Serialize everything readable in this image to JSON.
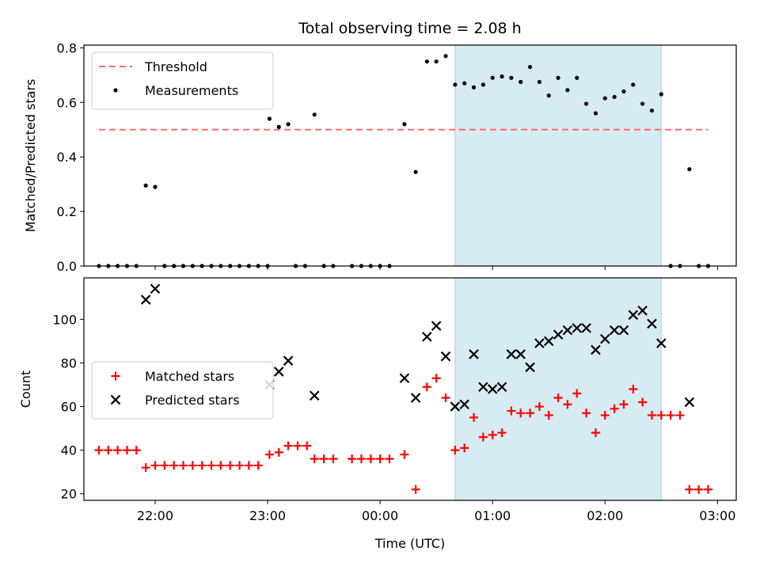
{
  "chart_data": [
    {
      "type": "scatter",
      "title": "Total observing time = 2.08 h",
      "xlabel": "",
      "ylabel": "Matched/Predicted stars",
      "xlim": [
        "21:22",
        "03:10"
      ],
      "ylim": [
        0,
        0.81
      ],
      "yticks": [
        "0.0",
        "0.2",
        "0.4",
        "0.6",
        "0.8"
      ],
      "legend_position": "top-left",
      "highlight_span": {
        "start": "00:40",
        "end": "02:30",
        "color": "#add8e6"
      },
      "threshold": {
        "label": "Threshold",
        "value": 0.5,
        "x_start": "21:30",
        "x_end": "02:55",
        "color": "#ff6b6b"
      },
      "series": [
        {
          "name": "Measurements",
          "color": "#000000",
          "points": [
            [
              "21:30",
              0
            ],
            [
              "21:35",
              0
            ],
            [
              "21:40",
              0
            ],
            [
              "21:45",
              0
            ],
            [
              "21:50",
              0
            ],
            [
              "21:55",
              0.295
            ],
            [
              "22:00",
              0.29
            ],
            [
              "22:05",
              0
            ],
            [
              "22:10",
              0
            ],
            [
              "22:15",
              0
            ],
            [
              "22:20",
              0
            ],
            [
              "22:25",
              0
            ],
            [
              "22:30",
              0
            ],
            [
              "22:35",
              0
            ],
            [
              "22:40",
              0
            ],
            [
              "22:45",
              0
            ],
            [
              "22:50",
              0
            ],
            [
              "22:55",
              0
            ],
            [
              "23:00",
              0
            ],
            [
              "23:01",
              0.54
            ],
            [
              "23:06",
              0.51
            ],
            [
              "23:11",
              0.52
            ],
            [
              "23:15",
              0
            ],
            [
              "23:20",
              0
            ],
            [
              "23:25",
              0.555
            ],
            [
              "23:30",
              0
            ],
            [
              "23:35",
              0
            ],
            [
              "23:45",
              0
            ],
            [
              "23:50",
              0
            ],
            [
              "23:55",
              0
            ],
            [
              "00:00",
              0
            ],
            [
              "00:05",
              0
            ],
            [
              "00:13",
              0.52
            ],
            [
              "00:19",
              0.345
            ],
            [
              "00:25",
              0.75
            ],
            [
              "00:30",
              0.75
            ],
            [
              "00:35",
              0.77
            ],
            [
              "00:40",
              0.665
            ],
            [
              "00:45",
              0.67
            ],
            [
              "00:50",
              0.655
            ],
            [
              "00:55",
              0.665
            ],
            [
              "01:00",
              0.69
            ],
            [
              "01:05",
              0.695
            ],
            [
              "01:10",
              0.69
            ],
            [
              "01:15",
              0.675
            ],
            [
              "01:20",
              0.73
            ],
            [
              "01:25",
              0.675
            ],
            [
              "01:30",
              0.625
            ],
            [
              "01:35",
              0.69
            ],
            [
              "01:40",
              0.645
            ],
            [
              "01:45",
              0.69
            ],
            [
              "01:50",
              0.595
            ],
            [
              "01:55",
              0.56
            ],
            [
              "02:00",
              0.615
            ],
            [
              "02:05",
              0.62
            ],
            [
              "02:10",
              0.64
            ],
            [
              "02:15",
              0.665
            ],
            [
              "02:20",
              0.595
            ],
            [
              "02:25",
              0.57
            ],
            [
              "02:30",
              0.63
            ],
            [
              "02:35",
              0
            ],
            [
              "02:40",
              0
            ],
            [
              "02:45",
              0.355
            ],
            [
              "02:50",
              0
            ],
            [
              "02:55",
              0
            ]
          ]
        }
      ]
    },
    {
      "type": "scatter",
      "title": "",
      "xlabel": "Time (UTC)",
      "ylabel": "Count",
      "xlim": [
        "21:22",
        "03:10"
      ],
      "ylim": [
        17,
        119
      ],
      "yticks": [
        "20",
        "40",
        "60",
        "80",
        "100"
      ],
      "xticks": [
        "22:00",
        "23:00",
        "00:00",
        "01:00",
        "02:00",
        "03:00"
      ],
      "legend_position": "center-left",
      "highlight_span": {
        "start": "00:40",
        "end": "02:30",
        "color": "#add8e6"
      },
      "series": [
        {
          "name": "Matched stars",
          "marker": "+",
          "color": "#ff0000",
          "points": [
            [
              "21:30",
              40
            ],
            [
              "21:35",
              40
            ],
            [
              "21:40",
              40
            ],
            [
              "21:45",
              40
            ],
            [
              "21:50",
              40
            ],
            [
              "21:55",
              32
            ],
            [
              "22:00",
              33
            ],
            [
              "22:05",
              33
            ],
            [
              "22:10",
              33
            ],
            [
              "22:15",
              33
            ],
            [
              "22:20",
              33
            ],
            [
              "22:25",
              33
            ],
            [
              "22:30",
              33
            ],
            [
              "22:35",
              33
            ],
            [
              "22:40",
              33
            ],
            [
              "22:45",
              33
            ],
            [
              "22:50",
              33
            ],
            [
              "22:55",
              33
            ],
            [
              "23:01",
              38
            ],
            [
              "23:06",
              39
            ],
            [
              "23:11",
              42
            ],
            [
              "23:16",
              42
            ],
            [
              "23:21",
              42
            ],
            [
              "23:25",
              36
            ],
            [
              "23:30",
              36
            ],
            [
              "23:35",
              36
            ],
            [
              "23:45",
              36
            ],
            [
              "23:50",
              36
            ],
            [
              "23:55",
              36
            ],
            [
              "00:00",
              36
            ],
            [
              "00:05",
              36
            ],
            [
              "00:13",
              38
            ],
            [
              "00:19",
              22
            ],
            [
              "00:25",
              69
            ],
            [
              "00:30",
              73
            ],
            [
              "00:35",
              64
            ],
            [
              "00:40",
              40
            ],
            [
              "00:45",
              41
            ],
            [
              "00:50",
              55
            ],
            [
              "00:55",
              46
            ],
            [
              "01:00",
              47
            ],
            [
              "01:05",
              48
            ],
            [
              "01:10",
              58
            ],
            [
              "01:15",
              57
            ],
            [
              "01:20",
              57
            ],
            [
              "01:25",
              60
            ],
            [
              "01:30",
              56
            ],
            [
              "01:35",
              64
            ],
            [
              "01:40",
              61
            ],
            [
              "01:45",
              66
            ],
            [
              "01:50",
              57
            ],
            [
              "01:55",
              48
            ],
            [
              "02:00",
              56
            ],
            [
              "02:05",
              59
            ],
            [
              "02:10",
              61
            ],
            [
              "02:15",
              68
            ],
            [
              "02:20",
              62
            ],
            [
              "02:25",
              56
            ],
            [
              "02:30",
              56
            ],
            [
              "02:35",
              56
            ],
            [
              "02:40",
              56
            ],
            [
              "02:45",
              22
            ],
            [
              "02:50",
              22
            ],
            [
              "02:55",
              22
            ]
          ]
        },
        {
          "name": "Predicted stars",
          "marker": "x",
          "color": "#000000",
          "points": [
            [
              "21:55",
              109
            ],
            [
              "22:00",
              114
            ],
            [
              "23:01",
              70
            ],
            [
              "23:06",
              76
            ],
            [
              "23:11",
              81
            ],
            [
              "23:25",
              65
            ],
            [
              "00:13",
              73
            ],
            [
              "00:19",
              64
            ],
            [
              "00:25",
              92
            ],
            [
              "00:30",
              97
            ],
            [
              "00:35",
              83
            ],
            [
              "00:40",
              60
            ],
            [
              "00:45",
              61
            ],
            [
              "00:50",
              84
            ],
            [
              "00:55",
              69
            ],
            [
              "01:00",
              68
            ],
            [
              "01:05",
              69
            ],
            [
              "01:10",
              84
            ],
            [
              "01:15",
              84
            ],
            [
              "01:20",
              78
            ],
            [
              "01:25",
              89
            ],
            [
              "01:30",
              90
            ],
            [
              "01:35",
              93
            ],
            [
              "01:40",
              95
            ],
            [
              "01:45",
              96
            ],
            [
              "01:50",
              96
            ],
            [
              "01:55",
              86
            ],
            [
              "02:00",
              91
            ],
            [
              "02:05",
              95
            ],
            [
              "02:10",
              95
            ],
            [
              "02:15",
              102
            ],
            [
              "02:20",
              104
            ],
            [
              "02:25",
              98
            ],
            [
              "02:30",
              89
            ],
            [
              "02:45",
              62
            ]
          ]
        }
      ]
    }
  ]
}
